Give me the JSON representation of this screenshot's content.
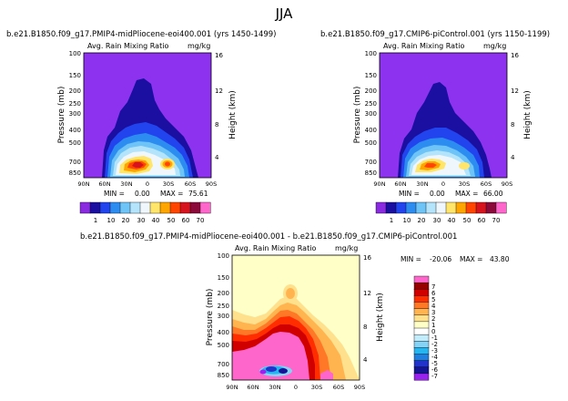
{
  "page": {
    "title": "JJA"
  },
  "colors": {
    "bg_purple": "#8d33f0",
    "diff_bg": "#ffffc8",
    "abs_scale": [
      "#8a2be2",
      "#1a0fa0",
      "#2244ee",
      "#2d8cf0",
      "#6ec3f7",
      "#b4e4fb",
      "#f0f7fc",
      "#ffe56a",
      "#ffa500",
      "#ff4500",
      "#d7141e",
      "#8b0a3a",
      "#ff66cc"
    ],
    "diff_scale": [
      "#9922ee",
      "#141496",
      "#2233cc",
      "#1f7fe0",
      "#27b5f0",
      "#85d3f7",
      "#c2ebfb",
      "#ffffff",
      "#ffffc8",
      "#ffe08c",
      "#ffb450",
      "#ff7828",
      "#ff2d00",
      "#d10000",
      "#980000",
      "#ff66cc"
    ]
  },
  "chart_data": [
    {
      "type": "heatmap",
      "title": "b.e21.B1850.f09_g17.PMIP4-midPliocene-eoi400.001 (yrs 1450-1499)",
      "subtitle": "Avg. Rain Mixing Ratio",
      "units": "mg/kg",
      "ylabel": "Pressure (mb)",
      "ylabel_right": "Height (km)",
      "x_ticks": [
        "90N",
        "60N",
        "30N",
        "0",
        "30S",
        "60S",
        "90S"
      ],
      "y_ticks": [
        "100",
        "150",
        "200",
        "250",
        "300",
        "400",
        "500",
        "700",
        "850"
      ],
      "y_ticks_right": [
        "16",
        "12",
        "8",
        "4"
      ],
      "min_label": "MIN =",
      "min_value": "0.00",
      "max_label": "MAX =",
      "max_value": "75.61",
      "colorbar_labels": [
        "1",
        "10",
        "20",
        "30",
        "40",
        "50",
        "60",
        "70"
      ]
    },
    {
      "type": "heatmap",
      "title": "b.e21.B1850.f09_g17.CMIP6-piControl.001 (yrs 1150-1199)",
      "subtitle": "Avg. Rain Mixing Ratio",
      "units": "mg/kg",
      "ylabel": "Pressure (mb)",
      "ylabel_right": "Height (km)",
      "x_ticks": [
        "90N",
        "60N",
        "30N",
        "0",
        "30S",
        "60S",
        "90S"
      ],
      "y_ticks": [
        "100",
        "150",
        "200",
        "250",
        "300",
        "400",
        "500",
        "700",
        "850"
      ],
      "y_ticks_right": [
        "16",
        "12",
        "8",
        "4"
      ],
      "min_label": "MIN =",
      "min_value": "0.00",
      "max_label": "MAX =",
      "max_value": "66.00",
      "colorbar_labels": [
        "1",
        "10",
        "20",
        "30",
        "40",
        "50",
        "60",
        "70"
      ]
    },
    {
      "type": "heatmap",
      "title": "b.e21.B1850.f09_g17.PMIP4-midPliocene-eoi400.001 - b.e21.B1850.f09_g17.CMIP6-piControl.001",
      "subtitle": "Avg. Rain Mixing Ratio",
      "units": "mg/kg",
      "ylabel": "Pressure (mb)",
      "ylabel_right": "Height (km)",
      "x_ticks": [
        "90N",
        "60N",
        "30N",
        "0",
        "30S",
        "60S",
        "90S"
      ],
      "y_ticks": [
        "100",
        "150",
        "200",
        "250",
        "300",
        "400",
        "500",
        "700",
        "850"
      ],
      "y_ticks_right": [
        "16",
        "12",
        "8",
        "4"
      ],
      "min_label": "MIN =",
      "min_value": "-20.06",
      "max_label": "MAX =",
      "max_value": "43.80",
      "colorbar_labels": [
        "7",
        "6",
        "5",
        "4",
        "3",
        "2",
        "1",
        "0",
        "-1",
        "-2",
        "-3",
        "-4",
        "-5",
        "-6",
        "-7"
      ]
    }
  ]
}
